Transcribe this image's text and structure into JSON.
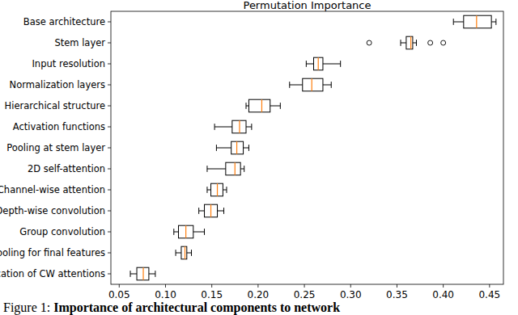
{
  "chart_data": {
    "type": "box",
    "orientation": "horizontal",
    "title": "Permutation Importance",
    "caption": {
      "label": "Figure 1:",
      "text": "Importance of architectural components to network"
    },
    "categories": [
      "Base architecture",
      "Stem layer",
      "Input resolution",
      "Normalization layers",
      "Hierarchical structure",
      "Activation functions",
      "Pooling at stem layer",
      "2D self-attention",
      "Channel-wise attention",
      "Depth-wise convolution",
      "Group convolution",
      "Pooling for final features",
      "Location of CW attentions"
    ],
    "boxes": [
      {
        "whisker_low": 0.411,
        "q1": 0.422,
        "median": 0.436,
        "q3": 0.452,
        "whisker_high": 0.457,
        "outliers": []
      },
      {
        "whisker_low": 0.354,
        "q1": 0.36,
        "median": 0.365,
        "q3": 0.367,
        "whisker_high": 0.371,
        "outliers": [
          0.32,
          0.386,
          0.4
        ]
      },
      {
        "whisker_low": 0.252,
        "q1": 0.26,
        "median": 0.265,
        "q3": 0.27,
        "whisker_high": 0.289,
        "outliers": []
      },
      {
        "whisker_low": 0.234,
        "q1": 0.248,
        "median": 0.258,
        "q3": 0.27,
        "whisker_high": 0.279,
        "outliers": []
      },
      {
        "whisker_low": 0.187,
        "q1": 0.19,
        "median": 0.204,
        "q3": 0.213,
        "whisker_high": 0.224,
        "outliers": []
      },
      {
        "whisker_low": 0.153,
        "q1": 0.172,
        "median": 0.18,
        "q3": 0.187,
        "whisker_high": 0.193,
        "outliers": []
      },
      {
        "whisker_low": 0.155,
        "q1": 0.171,
        "median": 0.177,
        "q3": 0.184,
        "whisker_high": 0.19,
        "outliers": []
      },
      {
        "whisker_low": 0.145,
        "q1": 0.165,
        "median": 0.175,
        "q3": 0.181,
        "whisker_high": 0.185,
        "outliers": []
      },
      {
        "whisker_low": 0.145,
        "q1": 0.149,
        "median": 0.156,
        "q3": 0.162,
        "whisker_high": 0.166,
        "outliers": []
      },
      {
        "whisker_low": 0.136,
        "q1": 0.142,
        "median": 0.149,
        "q3": 0.156,
        "whisker_high": 0.163,
        "outliers": []
      },
      {
        "whisker_low": 0.109,
        "q1": 0.114,
        "median": 0.122,
        "q3": 0.13,
        "whisker_high": 0.142,
        "outliers": []
      },
      {
        "whisker_low": 0.111,
        "q1": 0.117,
        "median": 0.121,
        "q3": 0.123,
        "whisker_high": 0.128,
        "outliers": []
      },
      {
        "whisker_low": 0.062,
        "q1": 0.069,
        "median": 0.076,
        "q3": 0.082,
        "whisker_high": 0.089,
        "outliers": []
      }
    ],
    "color": "#000000",
    "colors": [
      "#ff7f0e"
    ],
    "marker": "circle",
    "xlim": [
      0.041,
      0.465
    ],
    "xticks": [
      0.05,
      {
        "value": 0.1,
        "label": "0.10"
      },
      0.15,
      {
        "value": 0.2,
        "label": "0.20"
      },
      0.25,
      {
        "value": 0.3,
        "label": "0.30"
      },
      0.35,
      {
        "value": 0.4,
        "label": "0.40"
      },
      0.45
    ],
    "grid": false
  }
}
